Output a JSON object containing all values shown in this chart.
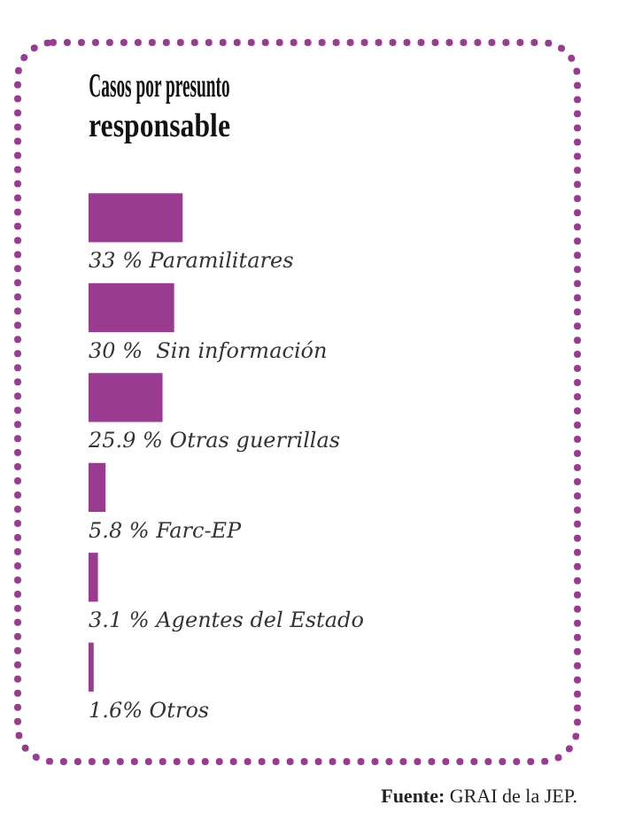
{
  "chart_data": {
    "type": "bar",
    "orientation": "horizontal",
    "title": "Casos por presunto responsable",
    "categories": [
      "Paramilitares",
      "Sin información",
      "Otras guerrillas",
      "Farc-EP",
      "Agentes del Estado",
      "Otros"
    ],
    "values": [
      33,
      30,
      25.9,
      5.8,
      3.1,
      1.6
    ],
    "value_labels": [
      "33 %",
      "30 % ",
      "25.9 %",
      "5.8 %",
      "3.1 %",
      "1.6%"
    ],
    "color": "#9b3a91",
    "legend": false,
    "annotations": [
      "Fuente: GRAI de la JEP."
    ]
  }
}
